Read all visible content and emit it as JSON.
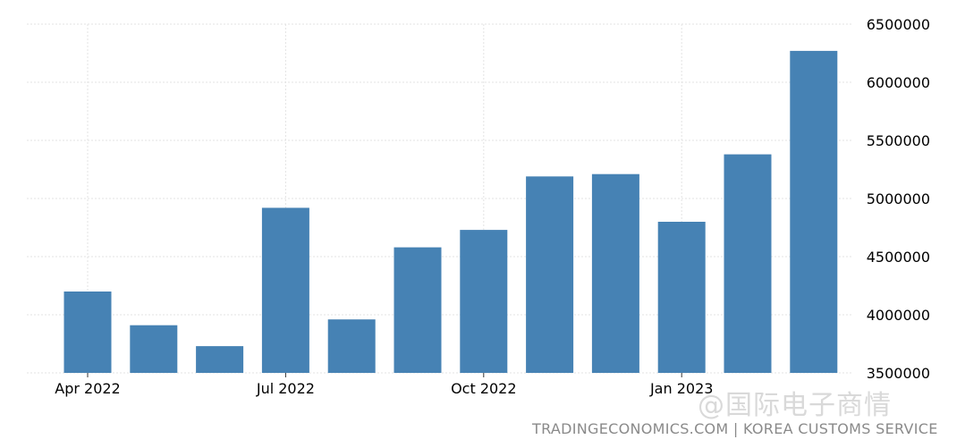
{
  "chart_data": {
    "type": "bar",
    "x": [
      "2022-04",
      "2022-05",
      "2022-06",
      "2022-07",
      "2022-08",
      "2022-09",
      "2022-10",
      "2022-11",
      "2022-12",
      "2023-01",
      "2023-02",
      "2023-03"
    ],
    "values": [
      4200000,
      3910000,
      3730000,
      4920000,
      3960000,
      4580000,
      4730000,
      5190000,
      5210000,
      4800000,
      5380000,
      6270000
    ],
    "xticks": [
      {
        "x": "2022-04",
        "label": "Apr 2022"
      },
      {
        "x": "2022-07",
        "label": "Jul 2022"
      },
      {
        "x": "2022-10",
        "label": "Oct 2022"
      },
      {
        "x": "2023-01",
        "label": "Jan 2023"
      }
    ],
    "yticks": [
      3500000,
      4000000,
      4500000,
      5000000,
      5500000,
      6000000,
      6500000
    ],
    "ylim": [
      3500000,
      6500000
    ],
    "title": "",
    "xlabel": "",
    "ylabel": "",
    "grid": true,
    "y_axis_side": "right",
    "bar_color": "#4682b4"
  },
  "source": "TRADINGECONOMICS.COM | KOREA CUSTOMS SERVICE",
  "watermark": "@国际电子商情"
}
